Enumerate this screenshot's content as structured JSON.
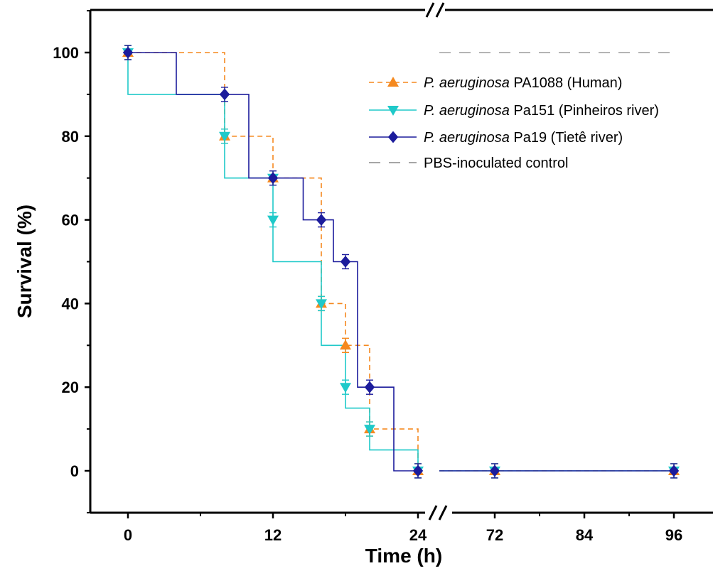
{
  "chart_data": {
    "type": "line",
    "subtype": "kaplan-meier-step",
    "xlabel": "Time (h)",
    "ylabel": "Survival (%)",
    "ylim": [
      -10,
      110
    ],
    "x_axis_break": "between 24 and 72",
    "x_ticks": [
      0,
      12,
      24,
      72,
      84,
      96
    ],
    "y_ticks": [
      0,
      20,
      40,
      60,
      80,
      100
    ],
    "grid": false,
    "legend_position": "top-right",
    "colors": {
      "orange": "#f5891f",
      "cyan": "#1fc9c9",
      "navy": "#1c1c9c",
      "gray": "#888888"
    },
    "series": [
      {
        "label_italic": "P. aeruginosa",
        "label_rest": " PA1088 (Human)",
        "color": "#f5891f",
        "style": "dashed",
        "marker": "triangle-up",
        "steps": [
          [
            0,
            100
          ],
          [
            8,
            80
          ],
          [
            12,
            70
          ],
          [
            16,
            40
          ],
          [
            18,
            30
          ],
          [
            20,
            10
          ],
          [
            24,
            0
          ],
          [
            72,
            0
          ],
          [
            96,
            0
          ]
        ],
        "markers": [
          [
            0,
            100
          ],
          [
            8,
            80
          ],
          [
            12,
            70
          ],
          [
            16,
            40
          ],
          [
            18,
            30
          ],
          [
            20,
            10
          ],
          [
            24,
            0
          ],
          [
            72,
            0
          ],
          [
            96,
            0
          ]
        ]
      },
      {
        "label_italic": "P. aeruginosa",
        "label_rest": " Pa151 (Pinheiros river)",
        "color": "#1fc9c9",
        "style": "solid",
        "marker": "triangle-down",
        "steps": [
          [
            0,
            100
          ],
          [
            0,
            90
          ],
          [
            8,
            70
          ],
          [
            12,
            50
          ],
          [
            16,
            30
          ],
          [
            18,
            15
          ],
          [
            20,
            5
          ],
          [
            24,
            0
          ],
          [
            72,
            0
          ],
          [
            96,
            0
          ]
        ],
        "markers": [
          [
            0,
            100
          ],
          [
            8,
            80
          ],
          [
            12,
            70
          ],
          [
            12,
            60
          ],
          [
            16,
            40
          ],
          [
            18,
            20
          ],
          [
            20,
            10
          ],
          [
            24,
            0
          ],
          [
            72,
            0
          ],
          [
            96,
            0
          ]
        ]
      },
      {
        "label_italic": "P. aeruginosa",
        "label_rest": " Pa19 (Tietê river)",
        "color": "#1c1c9c",
        "style": "solid",
        "marker": "diamond",
        "steps": [
          [
            0,
            100
          ],
          [
            4,
            90
          ],
          [
            10,
            70
          ],
          [
            14.5,
            60
          ],
          [
            17,
            50
          ],
          [
            19,
            20
          ],
          [
            22,
            0
          ],
          [
            24,
            0
          ],
          [
            72,
            0
          ],
          [
            96,
            0
          ]
        ],
        "markers": [
          [
            0,
            100
          ],
          [
            8,
            90
          ],
          [
            12,
            70
          ],
          [
            16,
            60
          ],
          [
            18,
            50
          ],
          [
            20,
            20
          ],
          [
            24,
            0
          ],
          [
            72,
            0
          ],
          [
            96,
            0
          ]
        ]
      },
      {
        "label": "PBS-inoculated control",
        "color": "#888888",
        "style": "long-dash",
        "marker": "none",
        "steps": [
          [
            0,
            100
          ],
          [
            96,
            100
          ]
        ],
        "markers": []
      }
    ]
  }
}
